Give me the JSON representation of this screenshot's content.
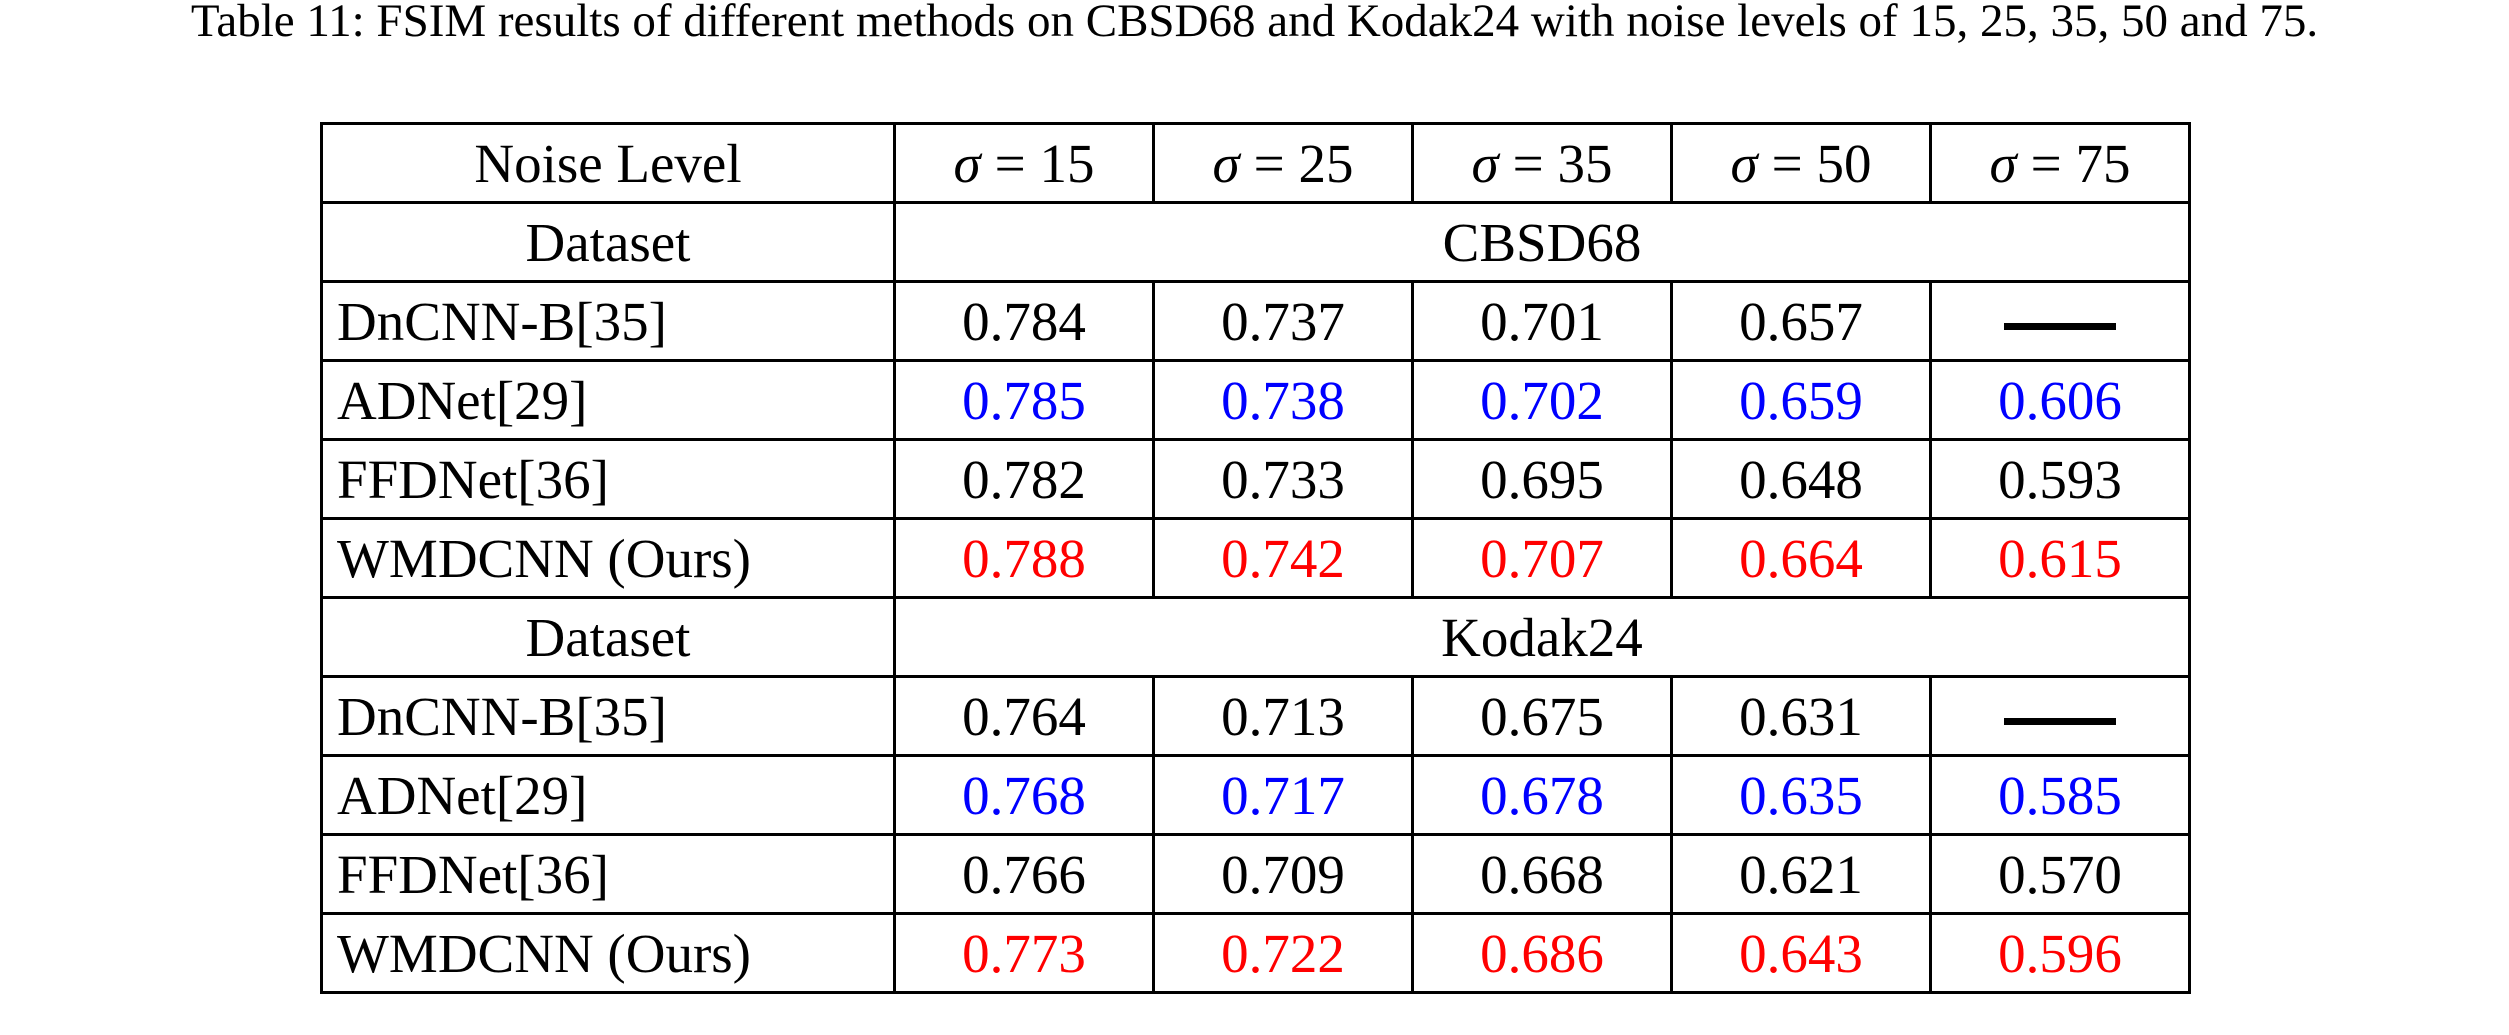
{
  "title": "Table 11: FSIM results of different methods on CBSD68 and Kodak24 with noise levels of 15, 25, 35, 50 and 75.",
  "colors": {
    "text": "#000000",
    "background": "#ffffff",
    "border": "#000000",
    "best_value": "#ff0000",
    "second_best_value": "#0000ff"
  },
  "table": {
    "header": {
      "label": "Noise Level",
      "sigma": "σ",
      "cols": [
        "= 15",
        "= 25",
        "= 35",
        "= 50",
        "= 75"
      ]
    },
    "sections": [
      {
        "dataset_label": "Dataset",
        "dataset_name": "CBSD68",
        "rows": [
          {
            "method": "DnCNN-B[35]",
            "color": "#000000",
            "values": [
              "0.784",
              "0.737",
              "0.701",
              "0.657",
              "—"
            ]
          },
          {
            "method": "ADNet[29]",
            "color": "#0000ff",
            "values": [
              "0.785",
              "0.738",
              "0.702",
              "0.659",
              "0.606"
            ]
          },
          {
            "method": "FFDNet[36]",
            "color": "#000000",
            "values": [
              "0.782",
              "0.733",
              "0.695",
              "0.648",
              "0.593"
            ]
          },
          {
            "method": "WMDCNN (Ours)",
            "color": "#ff0000",
            "values": [
              "0.788",
              "0.742",
              "0.707",
              "0.664",
              "0.615"
            ]
          }
        ]
      },
      {
        "dataset_label": "Dataset",
        "dataset_name": "Kodak24",
        "rows": [
          {
            "method": "DnCNN-B[35]",
            "color": "#000000",
            "values": [
              "0.764",
              "0.713",
              "0.675",
              "0.631",
              "—"
            ]
          },
          {
            "method": "ADNet[29]",
            "color": "#0000ff",
            "values": [
              "0.768",
              "0.717",
              "0.678",
              "0.635",
              "0.585"
            ]
          },
          {
            "method": "FFDNet[36]",
            "color": "#000000",
            "values": [
              "0.766",
              "0.709",
              "0.668",
              "0.621",
              "0.570"
            ]
          },
          {
            "method": "WMDCNN (Ours)",
            "color": "#ff0000",
            "values": [
              "0.773",
              "0.722",
              "0.686",
              "0.643",
              "0.596"
            ]
          }
        ]
      }
    ]
  }
}
